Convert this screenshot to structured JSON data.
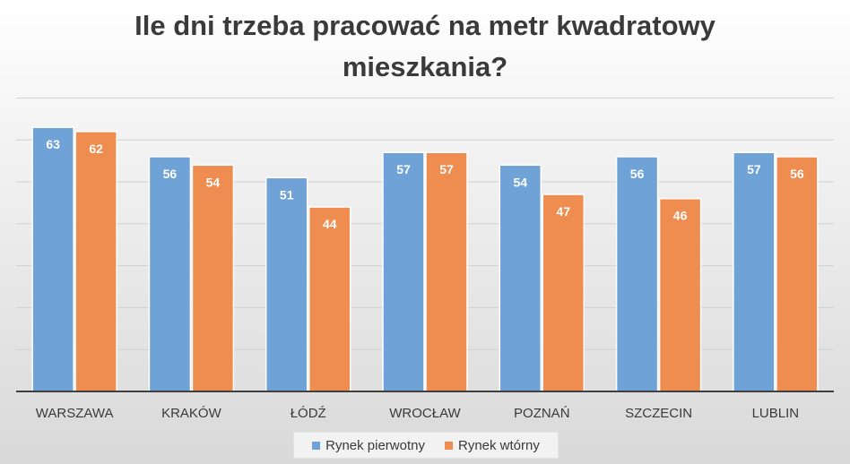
{
  "chart_data": {
    "type": "bar",
    "title_lines": [
      "Ile dni trzeba pracować na metr kwadratowy",
      "mieszkania?"
    ],
    "categories": [
      "WARSZAWA",
      "KRAKÓW",
      "ŁÓDŹ",
      "WROCŁAW",
      "POZNAŃ",
      "SZCZECIN",
      "LUBLIN"
    ],
    "series": [
      {
        "name": "Rynek pierwotny",
        "color": "#6fa3d8",
        "values": [
          63,
          56,
          51,
          57,
          54,
          56,
          57
        ]
      },
      {
        "name": "Rynek wtórny",
        "color": "#ee8d4f",
        "values": [
          62,
          54,
          44,
          57,
          47,
          46,
          56
        ]
      }
    ],
    "xlabel": "",
    "ylabel": "",
    "ylim": [
      0,
      70
    ],
    "grid": true,
    "legend_position": "bottom"
  }
}
